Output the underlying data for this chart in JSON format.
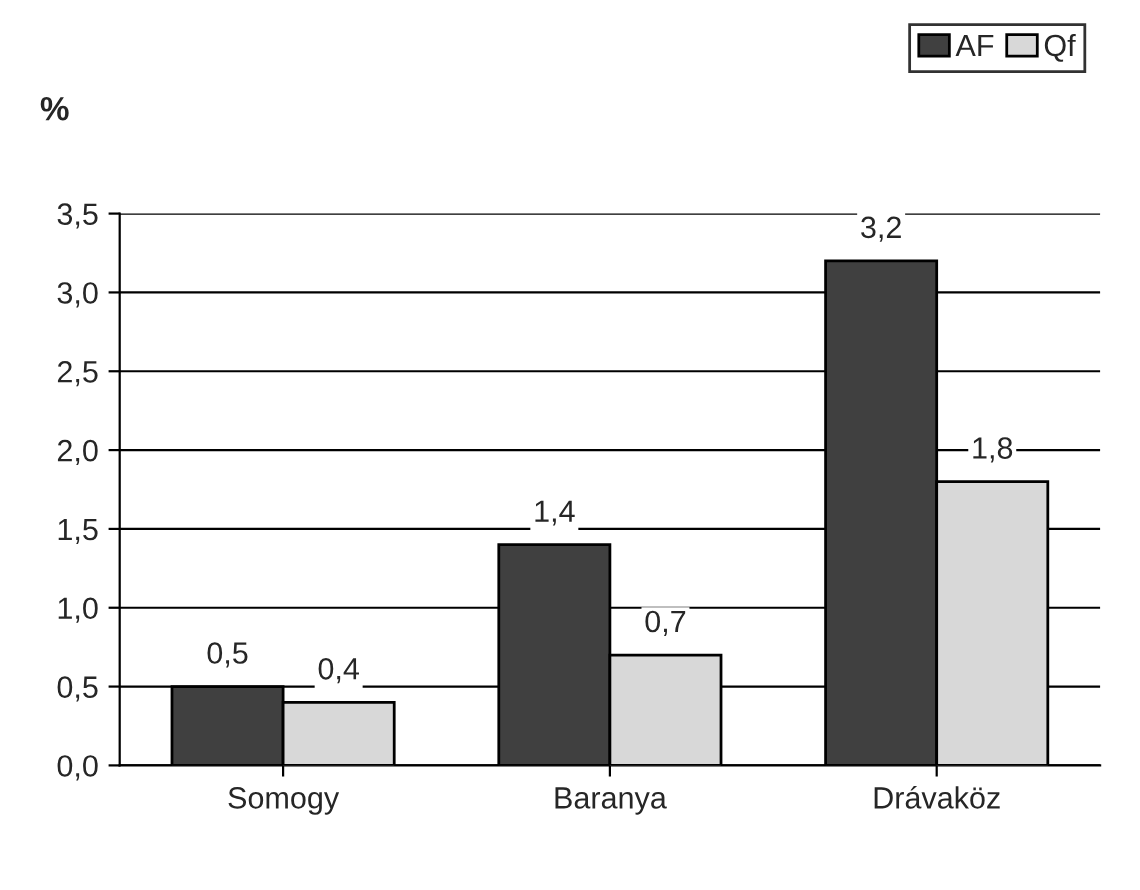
{
  "chart_data": {
    "type": "bar",
    "ylabel": "%",
    "categories": [
      "Somogy",
      "Baranya",
      "Drávaköz"
    ],
    "series": [
      {
        "name": "AF",
        "color": "#404040",
        "values": [
          0.5,
          1.4,
          3.2
        ],
        "value_labels": [
          "0,5",
          "1,4",
          "3,2"
        ]
      },
      {
        "name": "Qf",
        "color": "#d8d8d8",
        "values": [
          0.4,
          0.7,
          1.8
        ],
        "value_labels": [
          "0,4",
          "0,7",
          "1,8"
        ]
      }
    ],
    "ylim": [
      0,
      3.5
    ],
    "yticks": [
      {
        "value": 0,
        "label": "0,0"
      },
      {
        "value": 0.5,
        "label": "0,5"
      },
      {
        "value": 1,
        "label": "1,0"
      },
      {
        "value": 1.5,
        "label": "1,5"
      },
      {
        "value": 2,
        "label": "2,0"
      },
      {
        "value": 2.5,
        "label": "2,5"
      },
      {
        "value": 3,
        "label": "3,0"
      },
      {
        "value": 3.5,
        "label": "3,5"
      }
    ],
    "grid": "y",
    "legend": "top right"
  }
}
